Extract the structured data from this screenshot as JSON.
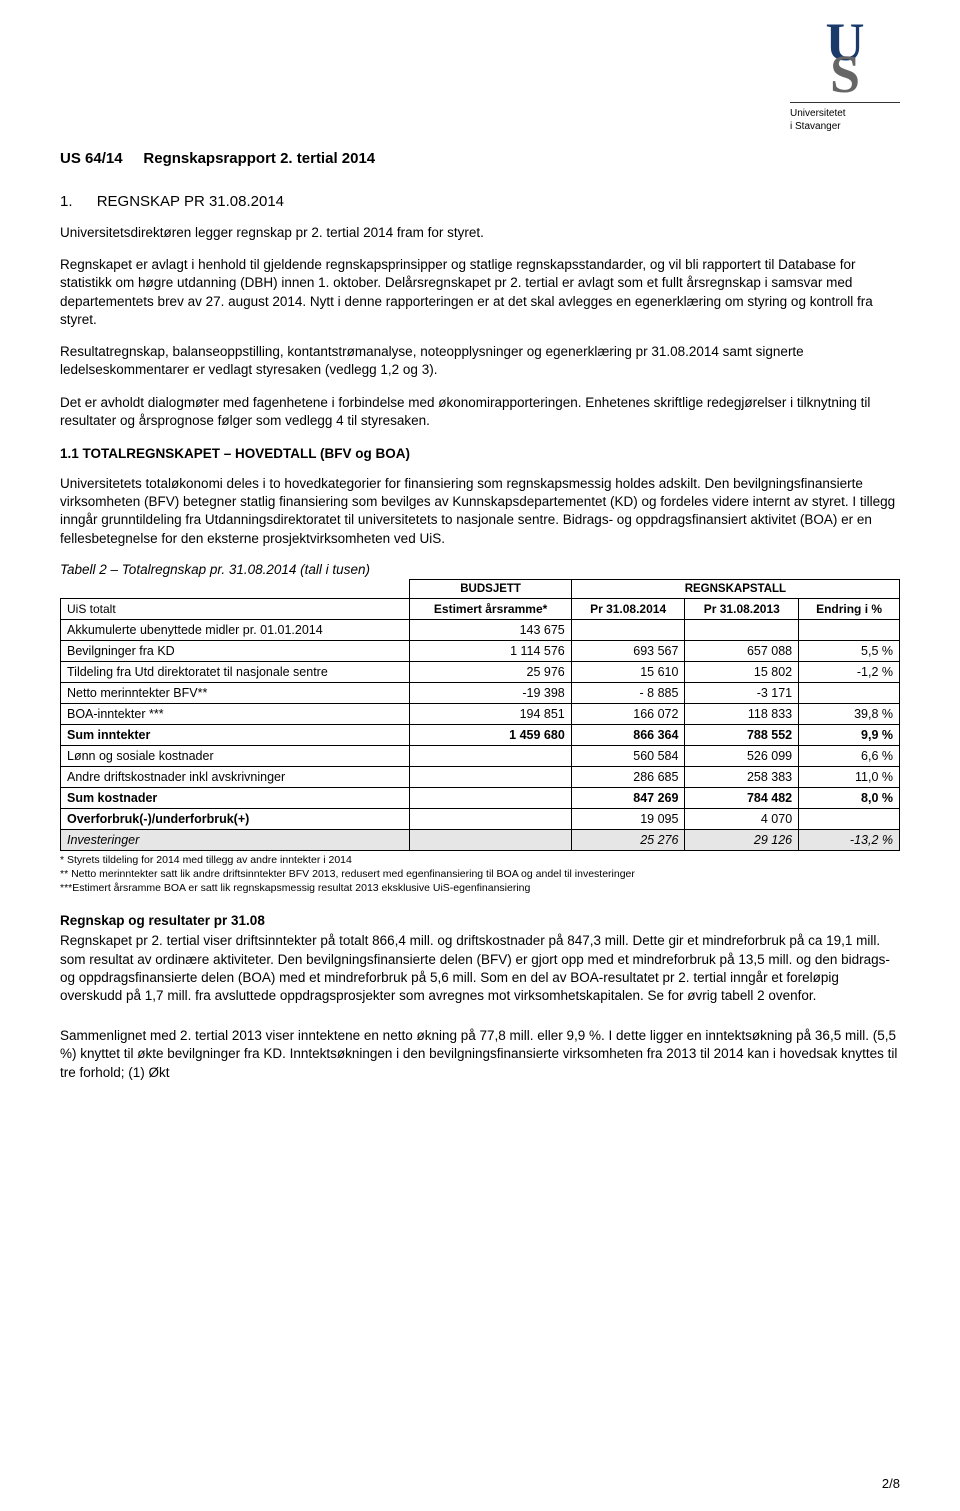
{
  "logo": {
    "letter1": "U",
    "letter2": "S",
    "line1": "Universitetet",
    "line2": "i Stavanger",
    "letter1_color": "#1a3a6b",
    "letter2_color": "#666666"
  },
  "header": {
    "doc_ref": "US 64/14",
    "doc_title": "Regnskapsrapport 2. tertial 2014"
  },
  "section1": {
    "num": "1.",
    "title": "REGNSKAP PR 31.08.2014"
  },
  "para1": "Universitetsdirektøren legger regnskap pr 2. tertial 2014 fram for styret.",
  "para2": "Regnskapet er avlagt i henhold til gjeldende regnskapsprinsipper og statlige regnskapsstandarder, og vil bli rapportert til Database for statistikk om høgre utdanning (DBH) innen 1. oktober. Delårsregnskapet pr 2. tertial er avlagt som et fullt årsregnskap i samsvar med departementets brev av 27. august 2014. Nytt i denne rapporteringen er at det skal avlegges en egenerklæring om styring og kontroll fra styret.",
  "para3": "Resultatregnskap, balanseoppstilling, kontantstrømanalyse, noteopplysninger og egenerklæring pr 31.08.2014 samt signerte ledelseskommentarer er vedlagt styresaken (vedlegg 1,2 og 3).",
  "para4": "Det er avholdt dialogmøter med fagenhetene i forbindelse med økonomirapporteringen. Enhetenes skriftlige redegjørelser i tilknytning til resultater og årsprognose følger som vedlegg 4 til styresaken.",
  "subsection11": "1.1 TOTALREGNSKAPET – HOVEDTALL (BFV og BOA)",
  "para5": "Universitetets totaløkonomi deles i to hovedkategorier for finansiering som regnskapsmessig holdes adskilt. Den bevilgningsfinansierte virksomheten (BFV) betegner statlig finansiering som bevilges av Kunnskapsdepartementet (KD) og fordeles videre internt av styret. I tillegg inngår grunntildeling fra Utdanningsdirektoratet til universitetets to nasjonale sentre. Bidrags- og oppdragsfinansiert aktivitet (BOA) er en fellesbetegnelse for den eksterne prosjektvirksomheten ved UiS.",
  "table2": {
    "caption": "Tabell 2 – Totalregnskap pr. 31.08.2014 (tall i tusen)",
    "group_headers": {
      "budsjett": "BUDSJETT",
      "regnskap": "REGNSKAPSTALL"
    },
    "col_headers": {
      "label": "UiS totalt",
      "est": "Estimert årsramme*",
      "pr2014": "Pr 31.08.2014",
      "pr2013": "Pr 31.08.2013",
      "endring": "Endring i %"
    },
    "rows": [
      {
        "label": "Akkumulerte ubenyttede midler pr. 01.01.2014",
        "est": "143 675",
        "pr2014": "",
        "pr2013": "",
        "endring": ""
      },
      {
        "label": "Bevilgninger fra KD",
        "est": "1 114 576",
        "pr2014": "693 567",
        "pr2013": "657 088",
        "endring": "5,5 %"
      },
      {
        "label": "Tildeling fra Utd direktoratet til nasjonale sentre",
        "est": "25 976",
        "pr2014": "15 610",
        "pr2013": "15 802",
        "endring": "-1,2 %"
      },
      {
        "label": "Netto merinntekter BFV**",
        "est": "-19 398",
        "pr2014": "- 8 885",
        "pr2013": "-3 171",
        "endring": ""
      },
      {
        "label": "BOA-inntekter ***",
        "est": "194 851",
        "pr2014": "166 072",
        "pr2013": "118 833",
        "endring": "39,8 %"
      },
      {
        "label": "Sum inntekter",
        "est": "1 459 680",
        "pr2014": "866 364",
        "pr2013": "788 552",
        "endring": "9,9 %",
        "bold": true
      },
      {
        "label": "Lønn og sosiale kostnader",
        "est": "",
        "pr2014": "560 584",
        "pr2013": "526 099",
        "endring": "6,6 %"
      },
      {
        "label": "Andre driftskostnader inkl avskrivninger",
        "est": "",
        "pr2014": "286 685",
        "pr2013": "258 383",
        "endring": "11,0 %"
      },
      {
        "label": "Sum kostnader",
        "est": "",
        "pr2014": "847 269",
        "pr2013": "784 482",
        "endring": "8,0 %",
        "bold": true
      },
      {
        "label": "Overforbruk(-)/underforbruk(+)",
        "est": "",
        "pr2014": "19 095",
        "pr2013": "4 070",
        "endring": "",
        "boldlabel": true
      },
      {
        "label": "Investeringer",
        "est": "",
        "pr2014": "25 276",
        "pr2013": "29 126",
        "endring": "-13,2 %",
        "shaded": true
      }
    ]
  },
  "footnotes": {
    "f1": "* Styrets tildeling for 2014 med tillegg av andre inntekter i 2014",
    "f2": "** Netto merinntekter satt lik andre driftsinntekter BFV 2013, redusert med egenfinansiering til BOA og andel til investeringer",
    "f3": "***Estimert årsramme BOA er satt lik regnskapsmessig resultat 2013 eksklusive UiS-egenfinansiering"
  },
  "res_head": "Regnskap og resultater pr 31.08",
  "para6": "Regnskapet pr 2. tertial viser driftsinntekter på totalt 866,4 mill. og driftskostnader på 847,3 mill. Dette gir et mindreforbruk på ca 19,1 mill. som resultat av ordinære aktiviteter. Den bevilgningsfinansierte delen (BFV) er gjort opp med et mindreforbruk på 13,5 mill. og den bidrags- og oppdragsfinansierte delen (BOA) med et mindreforbruk på 5,6 mill. Som en del av BOA-resultatet pr 2. tertial inngår et foreløpig overskudd på 1,7 mill. fra avsluttede oppdragsprosjekter som avregnes mot virksomhetskapitalen. Se for øvrig tabell 2 ovenfor.",
  "para7": "Sammenlignet med 2. tertial 2013 viser inntektene en netto økning på 77,8 mill. eller 9,9 %. I dette ligger en inntektsøkning på 36,5 mill. (5,5 %) knyttet til økte bevilgninger fra KD. Inntektsøkningen i den bevilgningsfinansierte virksomheten fra 2013 til 2014 kan i hovedsak knyttes til tre forhold; (1) Økt",
  "page_number": "2/8"
}
